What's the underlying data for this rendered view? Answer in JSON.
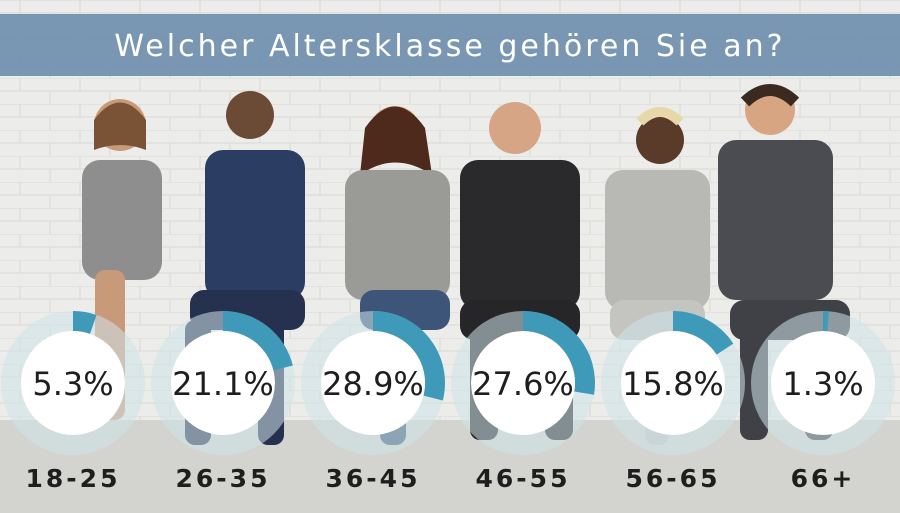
{
  "chart_data": {
    "type": "donut",
    "title": "Welcher Altersklasse gehören Sie an?",
    "categories": [
      "18-25",
      "26-35",
      "36-45",
      "46-55",
      "56-65",
      "66+"
    ],
    "values": [
      5.3,
      21.1,
      28.9,
      27.6,
      15.8,
      1.3
    ],
    "value_labels": [
      "5.3%",
      "21.1%",
      "28.9%",
      "27.6%",
      "15.8%",
      "1.3%"
    ],
    "unit": "%",
    "max": 100
  },
  "colors": {
    "banner": "#6f8fae",
    "ring_fill": "#3f9ab9",
    "ring_track": "#cfe3ea",
    "wall": "#e9e9e6",
    "floor": "#cfcfcb",
    "label_text": "#1e1e1e"
  }
}
